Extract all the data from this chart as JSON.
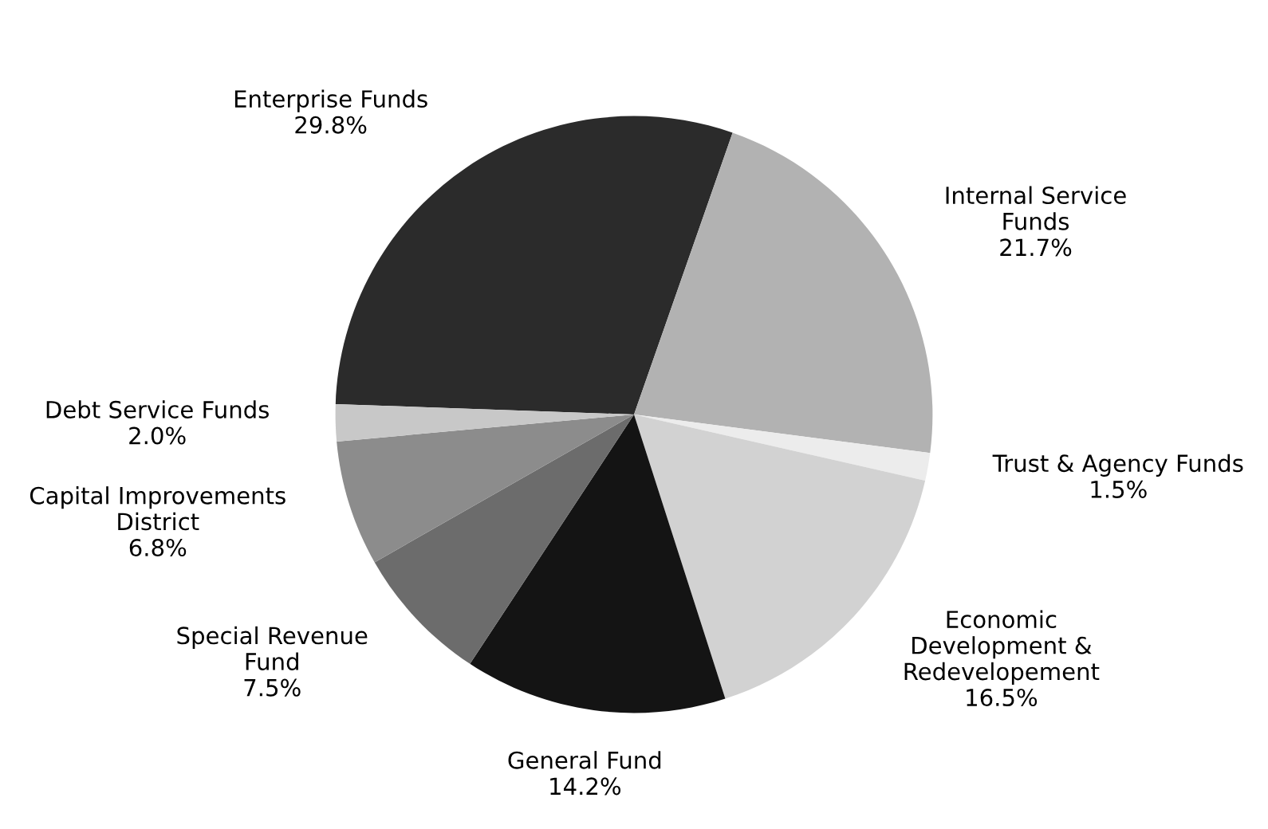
{
  "chart_data": {
    "type": "pie",
    "categories": [
      "Enterprise Funds",
      "Internal Service\nFunds",
      "Trust & Agency Funds",
      "Economic\nDevelopment &\nRedevelopement",
      "General Fund",
      "Special Revenue\nFund",
      "Capital Improvements\nDistrict",
      "Debt Service Funds"
    ],
    "values": [
      29.8,
      21.7,
      1.5,
      16.5,
      14.2,
      7.5,
      6.8,
      2.0
    ],
    "value_labels": [
      "29.8%",
      "21.7%",
      "1.5%",
      "16.5%",
      "14.2%",
      "7.5%",
      "6.8%",
      "2.0%"
    ],
    "colors": [
      "#2b2b2b",
      "#b2b2b2",
      "#ececec",
      "#d2d2d2",
      "#141414",
      "#6c6c6c",
      "#8c8c8c",
      "#c8c8c8"
    ]
  }
}
